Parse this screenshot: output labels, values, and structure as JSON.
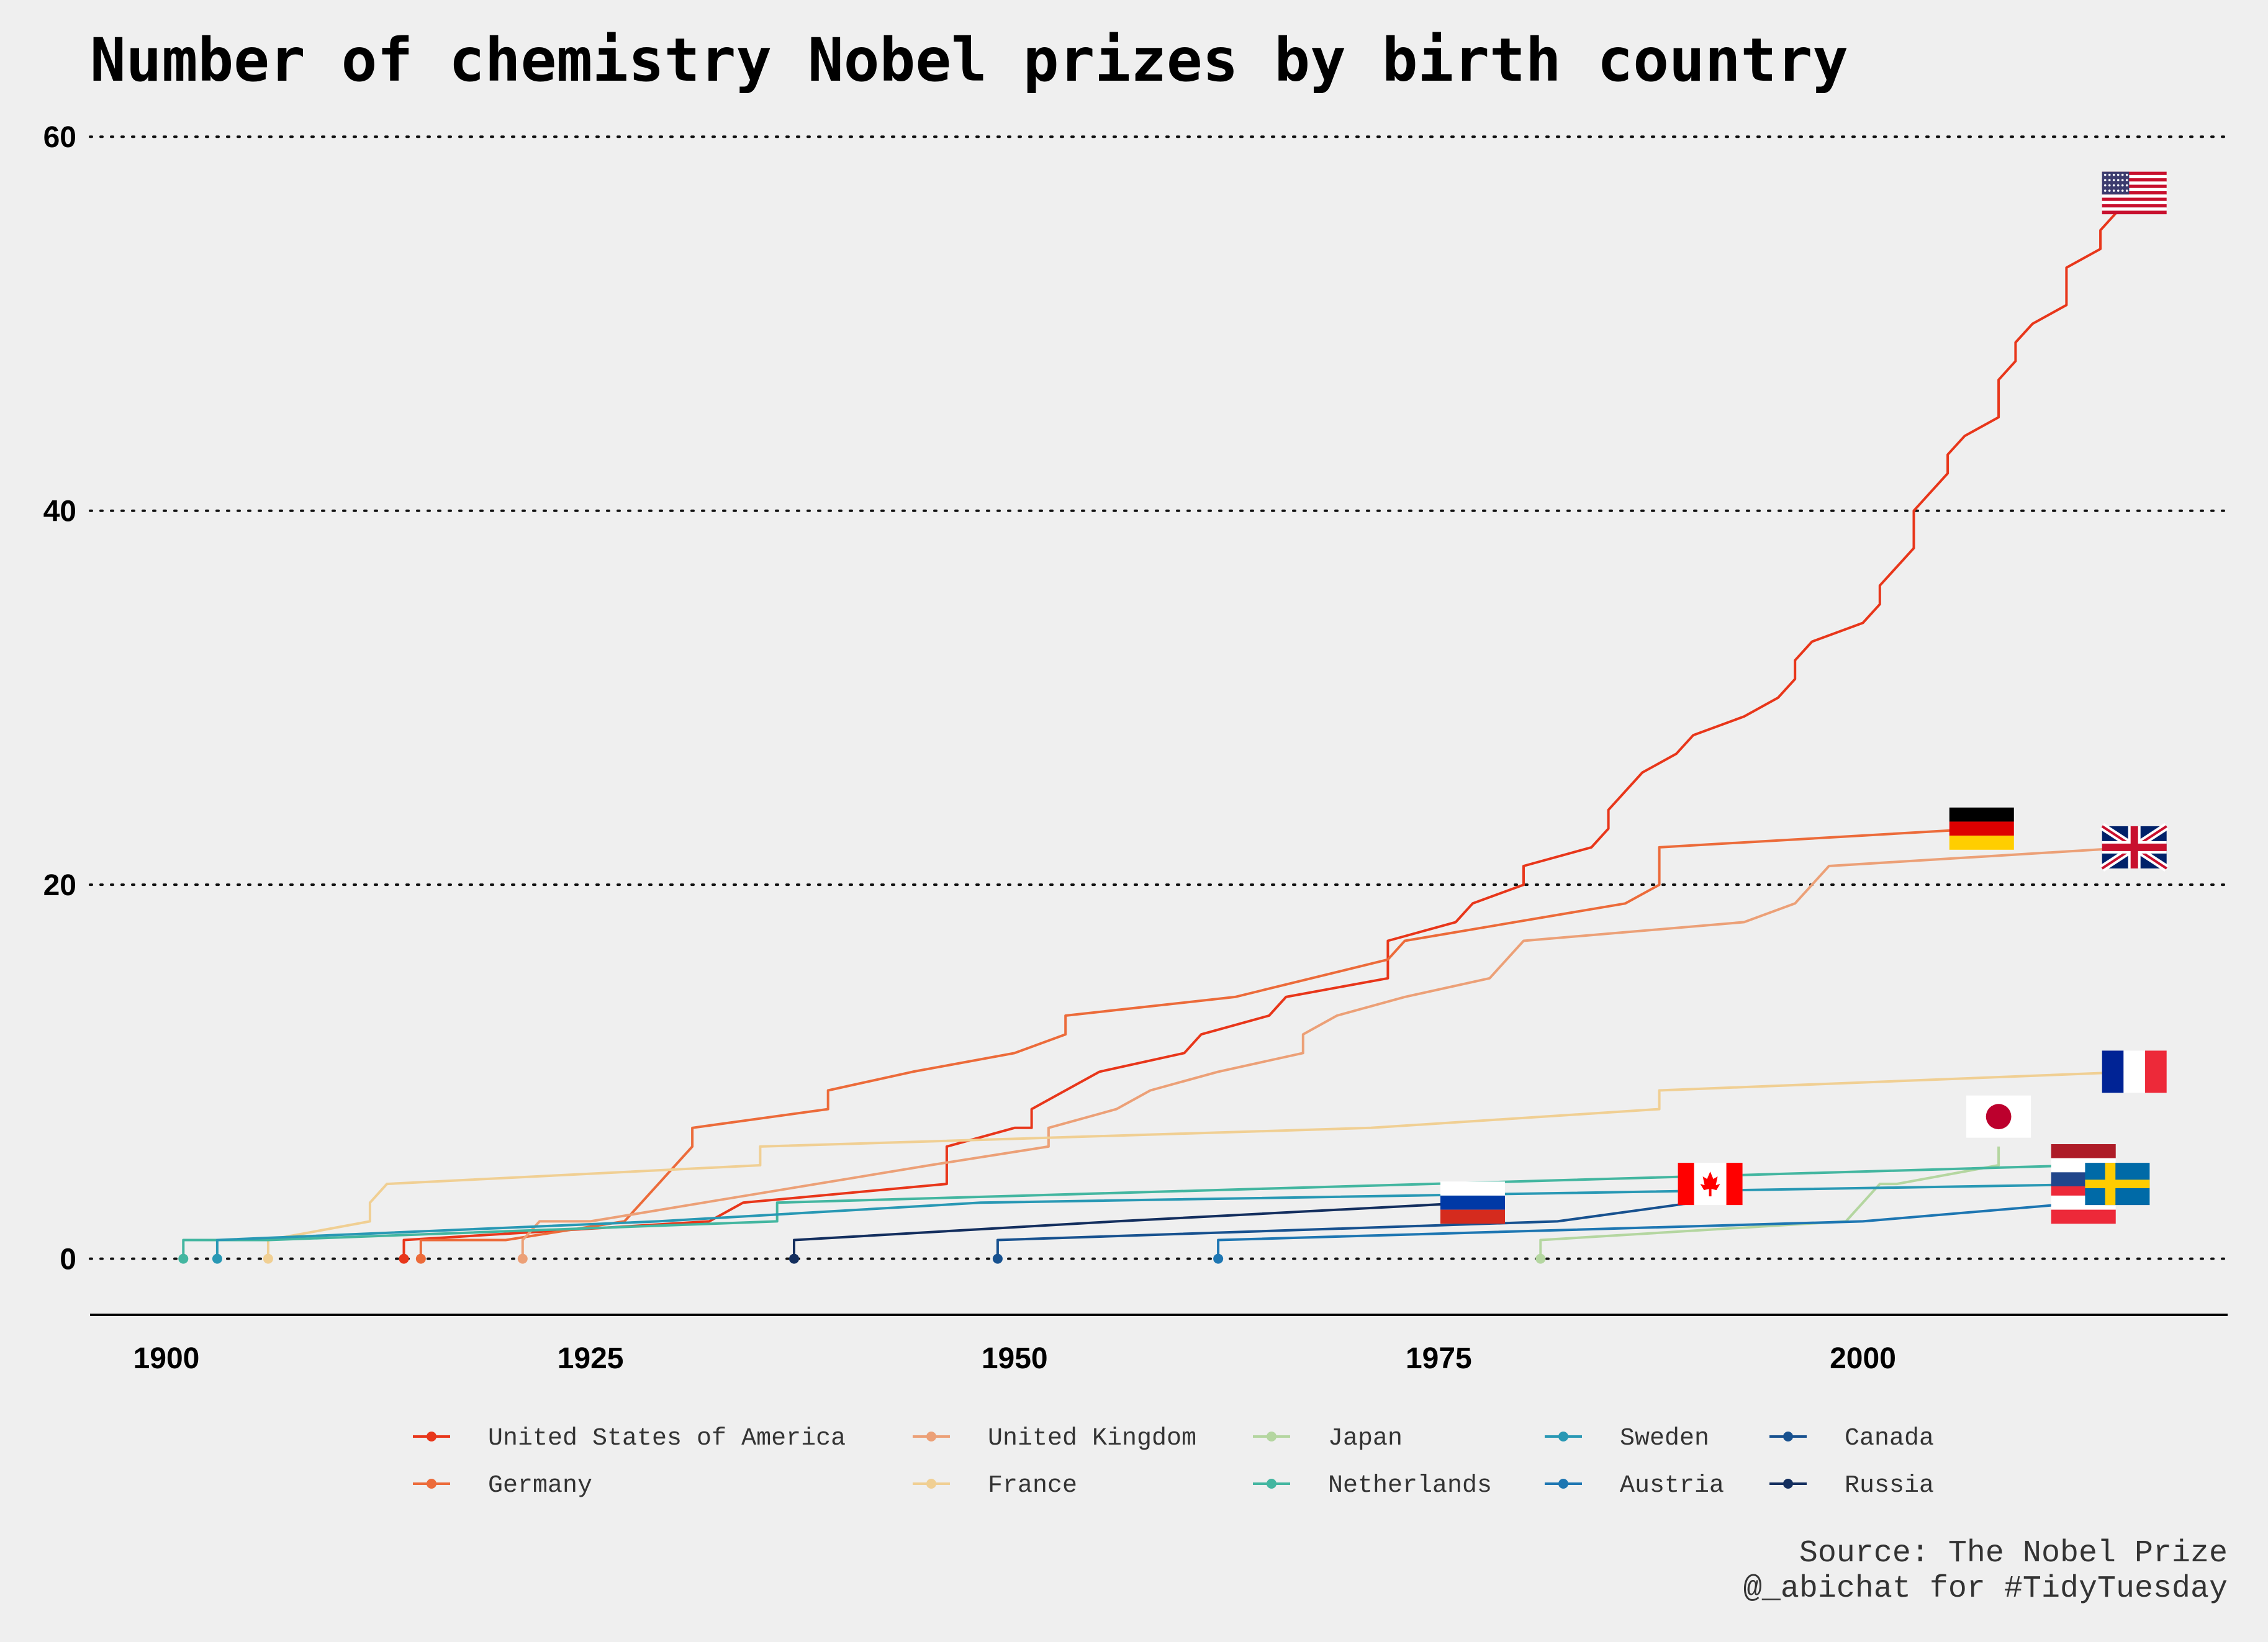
{
  "chart_data": {
    "type": "line",
    "title": "Number of chemistry Nobel prizes by birth country",
    "xlabel": "",
    "ylabel": "",
    "xlim": [
      1895.5,
      2021.5
    ],
    "ylim": [
      -3,
      62
    ],
    "x_ticks": [
      "1900",
      "1925",
      "1950",
      "1975",
      "2000"
    ],
    "y_ticks": [
      "0",
      "20",
      "40",
      "60"
    ],
    "grid": "horizontal dotted",
    "legend_position": "bottom",
    "series": [
      {
        "name": "United States of America",
        "color": "#e8361a",
        "flag": "usa",
        "points": [
          [
            1914,
            0
          ],
          [
            1914,
            1
          ],
          [
            1932,
            2
          ],
          [
            1934,
            3
          ],
          [
            1946,
            4
          ],
          [
            1946,
            6
          ],
          [
            1950,
            7
          ],
          [
            1951,
            7
          ],
          [
            1951,
            8
          ],
          [
            1953,
            9
          ],
          [
            1955,
            10
          ],
          [
            1960,
            11
          ],
          [
            1961,
            12
          ],
          [
            1965,
            13
          ],
          [
            1966,
            14
          ],
          [
            1972,
            15
          ],
          [
            1972,
            17
          ],
          [
            1976,
            18
          ],
          [
            1977,
            19
          ],
          [
            1980,
            20
          ],
          [
            1980,
            21
          ],
          [
            1984,
            22
          ],
          [
            1985,
            23
          ],
          [
            1985,
            24
          ],
          [
            1987,
            26
          ],
          [
            1989,
            27
          ],
          [
            1990,
            28
          ],
          [
            1993,
            29
          ],
          [
            1995,
            30
          ],
          [
            1996,
            31
          ],
          [
            1996,
            32
          ],
          [
            1997,
            33
          ],
          [
            2000,
            34
          ],
          [
            2001,
            35
          ],
          [
            2001,
            36
          ],
          [
            2003,
            38
          ],
          [
            2003,
            40
          ],
          [
            2005,
            42
          ],
          [
            2005,
            43
          ],
          [
            2006,
            44
          ],
          [
            2008,
            45
          ],
          [
            2008,
            47
          ],
          [
            2009,
            48
          ],
          [
            2009,
            49
          ],
          [
            2010,
            50
          ],
          [
            2012,
            51
          ],
          [
            2012,
            53
          ],
          [
            2014,
            54
          ],
          [
            2014,
            55
          ],
          [
            2015,
            56
          ],
          [
            2016,
            56
          ]
        ]
      },
      {
        "name": "Germany",
        "color": "#ec6b3a",
        "flag": "germany",
        "points": [
          [
            1915,
            0
          ],
          [
            1915,
            1
          ],
          [
            1920,
            1
          ],
          [
            1927,
            2
          ],
          [
            1931,
            6
          ],
          [
            1931,
            7
          ],
          [
            1939,
            8
          ],
          [
            1939,
            9
          ],
          [
            1944,
            10
          ],
          [
            1950,
            11
          ],
          [
            1953,
            12
          ],
          [
            1953,
            13
          ],
          [
            1963,
            14
          ],
          [
            1972,
            16
          ],
          [
            1973,
            17
          ],
          [
            1986,
            19
          ],
          [
            1988,
            20
          ],
          [
            1988,
            22
          ],
          [
            2007,
            23
          ]
        ]
      },
      {
        "name": "United Kingdom",
        "color": "#eca077",
        "flag": "uk",
        "points": [
          [
            1921,
            0
          ],
          [
            1921,
            1
          ],
          [
            1922,
            2
          ],
          [
            1925,
            2
          ],
          [
            1945,
            5
          ],
          [
            1952,
            6
          ],
          [
            1952,
            7
          ],
          [
            1956,
            8
          ],
          [
            1958,
            9
          ],
          [
            1962,
            10
          ],
          [
            1967,
            11
          ],
          [
            1967,
            12
          ],
          [
            1969,
            13
          ],
          [
            1973,
            14
          ],
          [
            1978,
            15
          ],
          [
            1980,
            17
          ],
          [
            1993,
            18
          ],
          [
            1996,
            19
          ],
          [
            1998,
            21
          ],
          [
            2016,
            22
          ]
        ]
      },
      {
        "name": "France",
        "color": "#f0cf93",
        "flag": "france",
        "points": [
          [
            1906,
            0
          ],
          [
            1906,
            1
          ],
          [
            1912,
            2
          ],
          [
            1912,
            3
          ],
          [
            1913,
            4
          ],
          [
            1935,
            5
          ],
          [
            1935,
            6
          ],
          [
            1971,
            7
          ],
          [
            1988,
            8
          ],
          [
            1988,
            9
          ],
          [
            2016,
            10
          ]
        ]
      },
      {
        "name": "Japan",
        "color": "#b4d6a0",
        "flag": "japan",
        "points": [
          [
            1981,
            0
          ],
          [
            1981,
            1
          ],
          [
            1999,
            2
          ],
          [
            2001,
            4
          ],
          [
            2002,
            4
          ],
          [
            2008,
            5
          ],
          [
            2008,
            6
          ]
        ]
      },
      {
        "name": "Netherlands",
        "color": "#43b6a0",
        "flag": "netherlands",
        "points": [
          [
            1901,
            0
          ],
          [
            1901,
            1
          ],
          [
            1906,
            1
          ],
          [
            1936,
            2
          ],
          [
            1936,
            3
          ],
          [
            2013,
            5
          ]
        ]
      },
      {
        "name": "Sweden",
        "color": "#2898b4",
        "flag": "sweden",
        "points": [
          [
            1903,
            0
          ],
          [
            1903,
            1
          ],
          [
            1929,
            2
          ],
          [
            1948,
            3
          ],
          [
            2015,
            4
          ]
        ]
      },
      {
        "name": "Austria",
        "color": "#1d76b2",
        "flag": "austria",
        "points": [
          [
            1962,
            0
          ],
          [
            1962,
            1
          ],
          [
            2000,
            2
          ],
          [
            2013,
            3
          ]
        ]
      },
      {
        "name": "Canada",
        "color": "#17518f",
        "flag": "canada",
        "points": [
          [
            1949,
            0
          ],
          [
            1949,
            1
          ],
          [
            1982,
            2
          ],
          [
            1990,
            3
          ],
          [
            1991,
            4
          ]
        ]
      },
      {
        "name": "Russia",
        "color": "#132e5e",
        "flag": "russia",
        "points": [
          [
            1937,
            0
          ],
          [
            1937,
            1
          ],
          [
            1956,
            2
          ],
          [
            1977,
            3
          ]
        ]
      }
    ],
    "caption": [
      "Source: The Nobel Prize",
      "@_abichat for #TidyTuesday"
    ]
  }
}
